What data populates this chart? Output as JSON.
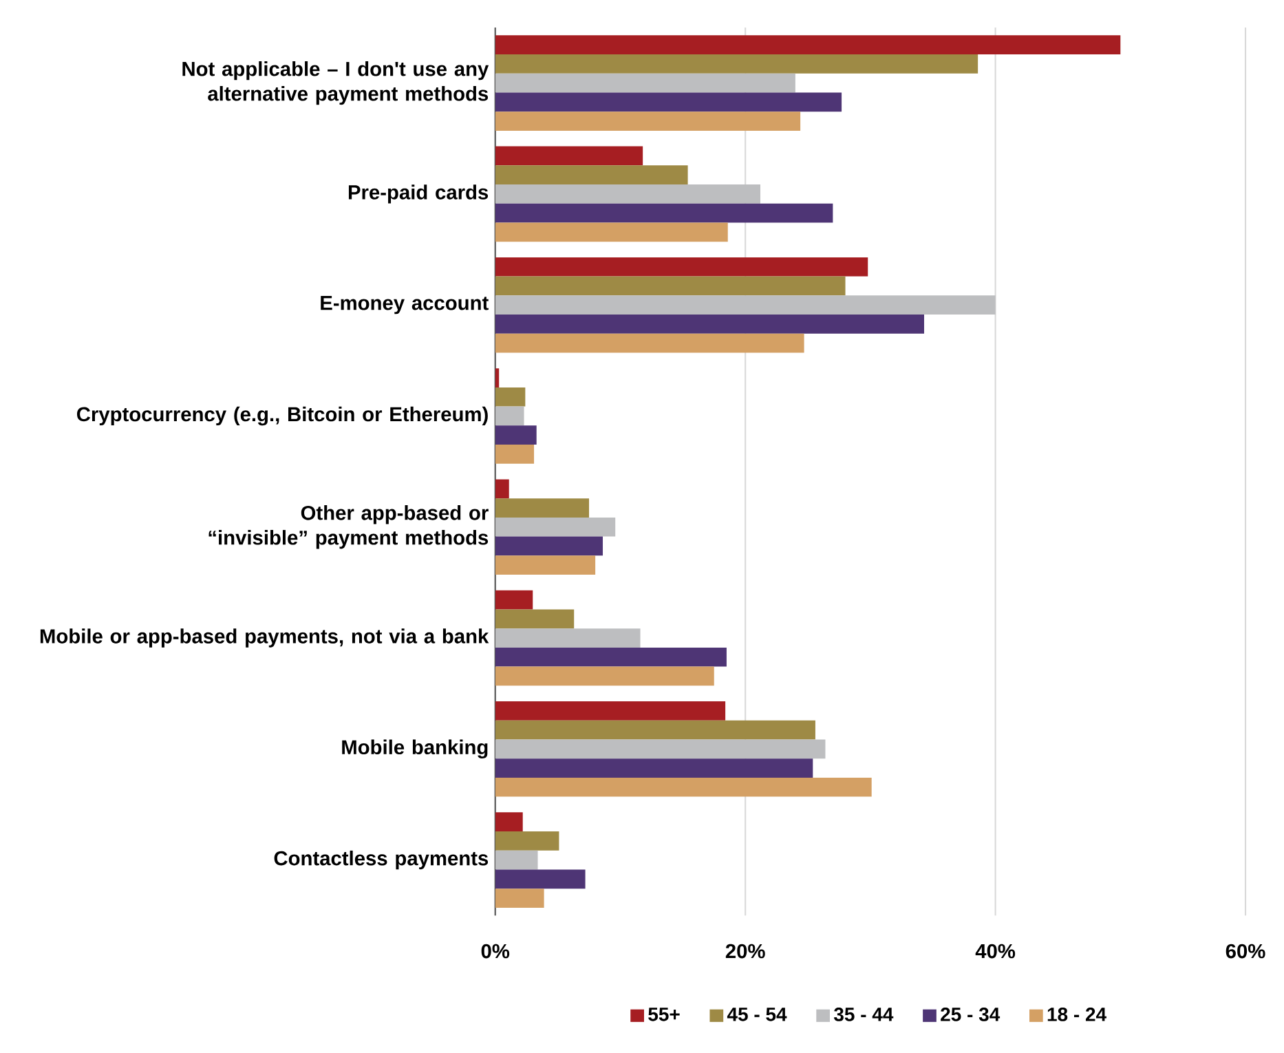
{
  "chart_data": {
    "type": "bar",
    "orientation": "horizontal",
    "categories": [
      "Not applicable – I don't use any alternative payment methods",
      "Pre-paid cards",
      "E-money account",
      "Cryptocurrency (e.g., Bitcoin or Ethereum)",
      "Other app-based or “invisible” payment methods",
      "Mobile or app-based payments, not via a bank",
      "Mobile banking",
      "Contactless payments"
    ],
    "series": [
      {
        "name": "55+",
        "color": "#a61e22",
        "values": [
          50.0,
          11.8,
          29.8,
          0.3,
          1.1,
          3.0,
          18.4,
          2.2
        ]
      },
      {
        "name": "45 - 54",
        "color": "#9e8a45",
        "values": [
          38.6,
          15.4,
          28.0,
          2.4,
          7.5,
          6.3,
          25.6,
          5.1
        ]
      },
      {
        "name": "35 - 44",
        "color": "#bdbec0",
        "values": [
          24.0,
          21.2,
          40.0,
          2.3,
          9.6,
          11.6,
          26.4,
          3.4
        ]
      },
      {
        "name": "25 - 34",
        "color": "#4e3575",
        "values": [
          27.7,
          27.0,
          34.3,
          3.3,
          8.6,
          18.5,
          25.4,
          7.2
        ]
      },
      {
        "name": "18 - 24",
        "color": "#d4a064",
        "values": [
          24.4,
          18.6,
          24.7,
          3.1,
          8.0,
          17.5,
          30.1,
          3.9
        ]
      }
    ],
    "xlim": [
      0,
      60
    ],
    "xticks": [
      {
        "value": 0,
        "label": "0%"
      },
      {
        "value": 20,
        "label": "20%"
      },
      {
        "value": 40,
        "label": "40%"
      },
      {
        "value": 60,
        "label": "60%"
      }
    ],
    "grid": "x",
    "legend": "bottom"
  }
}
